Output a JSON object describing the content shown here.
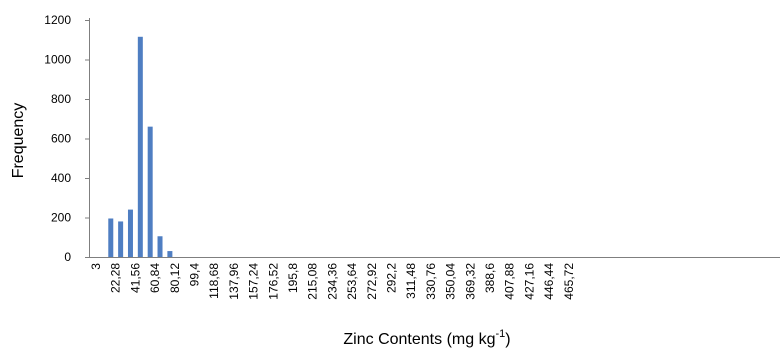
{
  "chart_data": {
    "type": "bar",
    "title": "",
    "xlabel": "Zinc Contents (mg kg",
    "xlabel_superscript": "-1",
    "xlabel_suffix": ")",
    "ylabel": "Frequency",
    "ylim": [
      0,
      1200
    ],
    "yticks": [
      0,
      200,
      400,
      600,
      800,
      1000,
      1200
    ],
    "grid": false,
    "legend": "none",
    "bar_color": "#4f7ec2",
    "x_ticks": [
      "3",
      "22,28",
      "41,56",
      "60,84",
      "80,12",
      "99,4",
      "118,68",
      "137,96",
      "157,24",
      "176,52",
      "195,8",
      "215,08",
      "234,36",
      "253,64",
      "272,92",
      "292,2",
      "311,48",
      "330,76",
      "350,04",
      "369,32",
      "388,6",
      "407,88",
      "427,16",
      "446,44",
      "465,72"
    ],
    "bins_per_tick": 2,
    "values": [
      0,
      195,
      180,
      240,
      1115,
      660,
      105,
      30,
      0,
      0,
      0,
      0,
      0,
      0,
      0,
      0,
      0,
      0,
      0,
      0,
      0,
      0,
      0,
      0,
      0,
      0,
      0,
      0,
      0,
      0,
      0,
      0,
      0,
      0,
      0,
      0,
      0,
      0,
      0,
      0,
      0,
      0,
      0,
      0,
      0,
      0,
      0,
      0,
      0,
      0
    ]
  }
}
